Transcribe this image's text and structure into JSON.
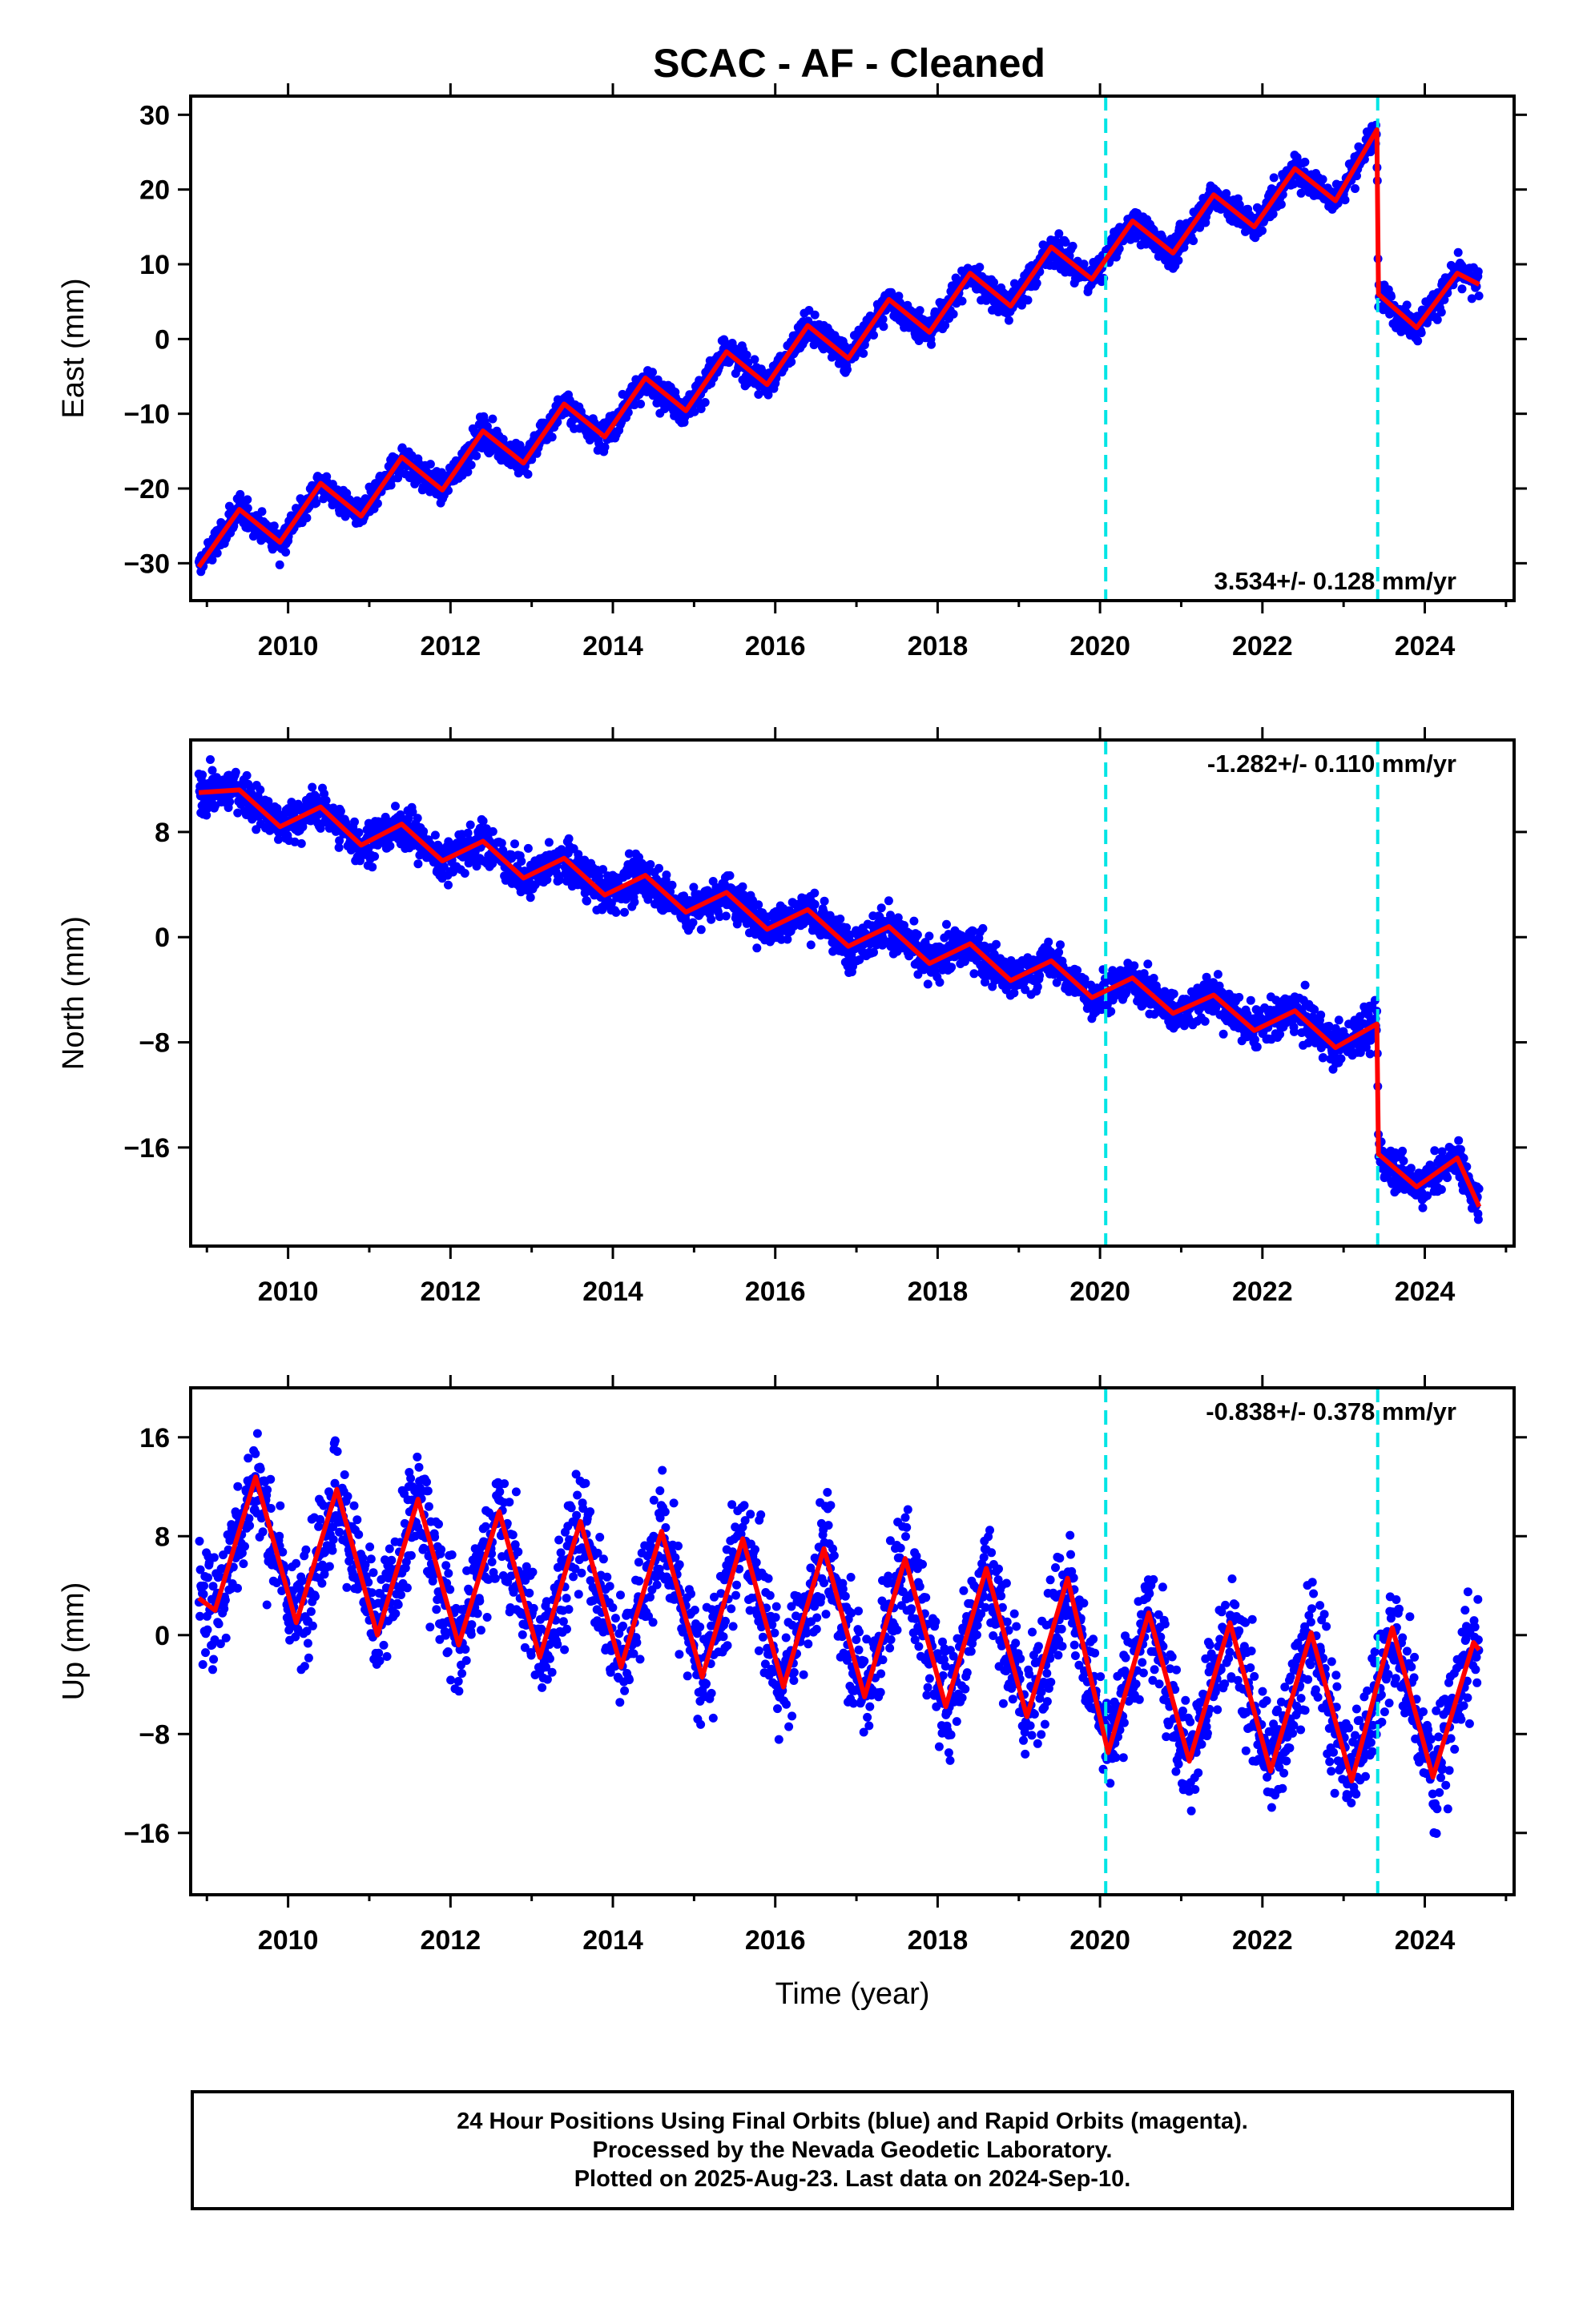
{
  "title": "SCAC  - AF - Cleaned",
  "colors": {
    "points": "#0000ff",
    "model": "#ff0000",
    "offsets": "#00e5e5",
    "frame": "#000000"
  },
  "chart_data": [
    {
      "type": "scatter",
      "ylabel": "East (mm)",
      "rate": "3.534+/- 0.128 mm/yr",
      "rate_position": "bottom-right",
      "xlim": [
        2008.8,
        2025.1
      ],
      "ylim": [
        -35,
        32.5
      ],
      "yticks": [
        -30,
        -20,
        -10,
        0,
        10,
        20,
        30
      ],
      "ytick_labels": [
        "−30",
        "−20",
        "−10",
        "0",
        "10",
        "20",
        "30"
      ],
      "xticks": [
        2010,
        2012,
        2014,
        2016,
        2018,
        2020,
        2022,
        2024
      ],
      "xtick_labels": [
        "2010",
        "2012",
        "2014",
        "2016",
        "2018",
        "2020",
        "2022",
        "2024"
      ],
      "offset_lines": [
        2020.07,
        2023.42
      ],
      "series": [
        {
          "kind": "model",
          "x": [
            2008.9,
            2009.4,
            2009.9,
            2010.4,
            2010.9,
            2011.4,
            2011.9,
            2012.4,
            2012.9,
            2013.4,
            2013.9,
            2014.4,
            2014.9,
            2015.4,
            2015.9,
            2016.4,
            2016.9,
            2017.4,
            2017.9,
            2018.4,
            2018.9,
            2019.4,
            2019.9,
            2020.4,
            2020.9,
            2021.4,
            2021.9,
            2022.4,
            2022.9,
            2023.41,
            2023.43,
            2023.9,
            2024.4,
            2024.67
          ],
          "y": [
            -30.5,
            -22.8,
            -27.2,
            -19.3,
            -23.7,
            -15.8,
            -20.2,
            -12.3,
            -16.6,
            -8.7,
            -13.1,
            -5.2,
            -9.6,
            -1.7,
            -6.1,
            1.8,
            -2.6,
            5.3,
            0.9,
            8.8,
            4.4,
            12.3,
            8.0,
            15.8,
            11.5,
            19.3,
            15.0,
            22.8,
            18.5,
            28.0,
            6.0,
            1.5,
            8.8,
            7.3
          ]
        }
      ]
    },
    {
      "type": "scatter",
      "ylabel": "North (mm)",
      "rate": "-1.282+/- 0.110 mm/yr",
      "rate_position": "top-right",
      "xlim": [
        2008.8,
        2025.1
      ],
      "ylim": [
        -23.5,
        15
      ],
      "yticks": [
        -16,
        -8,
        0,
        8
      ],
      "ytick_labels": [
        "−16",
        "−8",
        "0",
        "8"
      ],
      "xticks": [
        2010,
        2012,
        2014,
        2016,
        2018,
        2020,
        2022,
        2024
      ],
      "xtick_labels": [
        "2010",
        "2012",
        "2014",
        "2016",
        "2018",
        "2020",
        "2022",
        "2024"
      ],
      "offset_lines": [
        2020.07,
        2023.42
      ],
      "series": [
        {
          "kind": "model",
          "x": [
            2008.9,
            2009.4,
            2009.9,
            2010.4,
            2010.9,
            2011.4,
            2011.9,
            2012.4,
            2012.9,
            2013.4,
            2013.9,
            2014.4,
            2014.9,
            2015.4,
            2015.9,
            2016.4,
            2016.9,
            2017.4,
            2017.9,
            2018.4,
            2018.9,
            2019.4,
            2019.9,
            2020.4,
            2020.9,
            2021.4,
            2021.9,
            2022.4,
            2022.9,
            2023.41,
            2023.43,
            2023.9,
            2024.4,
            2024.67
          ],
          "y": [
            11.0,
            11.2,
            8.4,
            9.9,
            7.0,
            8.6,
            5.8,
            7.3,
            4.5,
            6.0,
            3.2,
            4.7,
            1.9,
            3.4,
            0.6,
            2.1,
            -0.7,
            0.8,
            -2.0,
            -0.5,
            -3.3,
            -1.8,
            -4.6,
            -3.1,
            -5.8,
            -4.4,
            -7.1,
            -5.6,
            -8.4,
            -6.6,
            -16.5,
            -19.0,
            -16.8,
            -20.5
          ]
        }
      ]
    },
    {
      "type": "scatter",
      "ylabel": "Up (mm)",
      "xlabel": "Time (year)",
      "rate": "-0.838+/- 0.378 mm/yr",
      "rate_position": "top-right",
      "xlim": [
        2008.8,
        2025.1
      ],
      "ylim": [
        -21,
        20
      ],
      "yticks": [
        -16,
        -8,
        0,
        8,
        16
      ],
      "ytick_labels": [
        "−16",
        "−8",
        "0",
        "8",
        "16"
      ],
      "xticks": [
        2010,
        2012,
        2014,
        2016,
        2018,
        2020,
        2022,
        2024
      ],
      "xtick_labels": [
        "2010",
        "2012",
        "2014",
        "2016",
        "2018",
        "2020",
        "2022",
        "2024"
      ],
      "offset_lines": [
        2020.07,
        2023.42
      ],
      "series": [
        {
          "kind": "model",
          "x": [
            2008.9,
            2009.1,
            2009.6,
            2010.1,
            2010.6,
            2011.1,
            2011.6,
            2012.1,
            2012.6,
            2013.1,
            2013.6,
            2014.1,
            2014.6,
            2015.1,
            2015.6,
            2016.1,
            2016.6,
            2017.1,
            2017.6,
            2018.1,
            2018.6,
            2019.1,
            2019.6,
            2020.1,
            2020.6,
            2021.1,
            2021.6,
            2022.1,
            2022.6,
            2023.1,
            2023.6,
            2024.1,
            2024.6,
            2024.67
          ],
          "y": [
            3.0,
            2.0,
            12.8,
            1.0,
            11.8,
            0.0,
            11.0,
            -0.8,
            10.0,
            -1.8,
            9.2,
            -2.6,
            8.4,
            -3.4,
            7.8,
            -4.2,
            7.0,
            -5.0,
            6.2,
            -5.8,
            5.4,
            -6.6,
            4.6,
            -9.5,
            1.8,
            -10.2,
            1.0,
            -11.0,
            0.2,
            -11.8,
            0.6,
            -11.5,
            -0.6,
            -1.2
          ]
        }
      ]
    }
  ],
  "footer": {
    "line1": "24 Hour Positions Using Final Orbits (blue) and Rapid Orbits (magenta).",
    "line2": "Processed by the Nevada Geodetic Laboratory.",
    "line3": "Plotted on 2025-Aug-23. Last data on 2024-Sep-10."
  }
}
